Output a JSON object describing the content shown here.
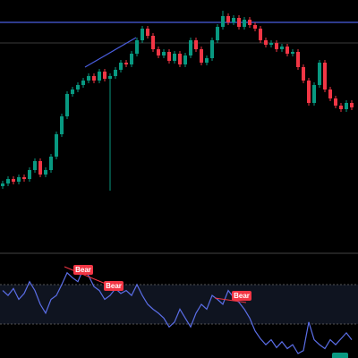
{
  "chart_data": {
    "type": "candlestick",
    "ylim": [
      0,
      280
    ],
    "up_color": "#089981",
    "down_color": "#f23645",
    "open": [
      72,
      75,
      80,
      77,
      82,
      80,
      90,
      100,
      85,
      90,
      105,
      130,
      150,
      175,
      180,
      185,
      190,
      195,
      190,
      200,
      192,
      195,
      202,
      210,
      208,
      220,
      235,
      248,
      240,
      225,
      218,
      222,
      212,
      220,
      208,
      218,
      235,
      225,
      210,
      215,
      235,
      250,
      262,
      255,
      260,
      250,
      258,
      252,
      248,
      235,
      230,
      232,
      225,
      228,
      220,
      222,
      205,
      190,
      165,
      185,
      210,
      180,
      170,
      162,
      158,
      165
    ],
    "high": [
      78,
      83,
      83,
      85,
      85,
      93,
      103,
      103,
      93,
      108,
      133,
      153,
      178,
      183,
      188,
      193,
      198,
      198,
      203,
      203,
      198,
      205,
      213,
      213,
      223,
      238,
      251,
      251,
      243,
      228,
      225,
      225,
      223,
      223,
      221,
      238,
      238,
      228,
      218,
      238,
      253,
      268,
      265,
      263,
      263,
      261,
      261,
      255,
      251,
      238,
      235,
      235,
      231,
      231,
      225,
      225,
      208,
      193,
      188,
      213,
      213,
      183,
      173,
      165,
      168,
      168
    ],
    "low": [
      69,
      72,
      74,
      74,
      77,
      77,
      87,
      82,
      82,
      87,
      102,
      127,
      147,
      172,
      177,
      182,
      187,
      187,
      187,
      189,
      67,
      192,
      199,
      205,
      205,
      217,
      232,
      237,
      222,
      215,
      215,
      209,
      209,
      205,
      205,
      215,
      222,
      207,
      207,
      212,
      232,
      247,
      252,
      252,
      247,
      247,
      249,
      245,
      232,
      227,
      227,
      222,
      222,
      217,
      217,
      202,
      187,
      162,
      162,
      182,
      177,
      167,
      159,
      155,
      155,
      157
    ],
    "close": [
      75,
      80,
      77,
      82,
      80,
      90,
      100,
      85,
      90,
      105,
      130,
      150,
      175,
      180,
      185,
      190,
      195,
      190,
      200,
      192,
      195,
      202,
      210,
      208,
      220,
      235,
      248,
      240,
      225,
      218,
      222,
      212,
      220,
      208,
      218,
      235,
      225,
      210,
      215,
      235,
      250,
      262,
      255,
      260,
      250,
      258,
      252,
      248,
      235,
      230,
      232,
      225,
      228,
      220,
      222,
      205,
      190,
      165,
      185,
      210,
      180,
      170,
      162,
      158,
      165,
      160
    ],
    "rsi": {
      "ylim": [
        0,
        100
      ],
      "levels": [
        70,
        30
      ],
      "color": "#5b6ee8",
      "values": [
        64,
        59,
        66,
        55,
        61,
        73,
        64,
        50,
        41,
        55,
        59,
        70,
        82,
        77,
        73,
        86,
        79,
        68,
        64,
        55,
        59,
        66,
        61,
        64,
        59,
        70,
        59,
        50,
        45,
        41,
        36,
        27,
        32,
        45,
        36,
        27,
        41,
        50,
        45,
        59,
        55,
        50,
        64,
        57,
        52,
        45,
        36,
        23,
        15,
        9,
        14,
        6,
        12,
        5,
        9,
        0,
        3,
        32,
        14,
        9,
        5,
        14,
        9,
        15,
        21,
        14
      ]
    },
    "annotations": [
      "Bear",
      "Bear",
      "Bear"
    ]
  }
}
